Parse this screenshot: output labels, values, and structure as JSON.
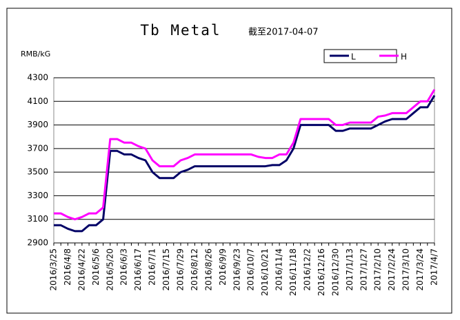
{
  "chart_data": {
    "type": "line",
    "title": "Tb Metal",
    "subtitle": "截至2017-04-07",
    "y_label": "RMB/kG",
    "categories": [
      "2016/3/25",
      null,
      "2016/4/8",
      null,
      "2016/4/22",
      null,
      "2016/5/6",
      null,
      "2016/5/20",
      null,
      "2016/6/3",
      null,
      "2016/6/17",
      null,
      "2016/7/1",
      null,
      "2016/7/15",
      null,
      "2016/7/29",
      null,
      "2016/8/12",
      null,
      "2016/8/26",
      null,
      "2016/9/9",
      null,
      "2016/9/23",
      null,
      "2016/10/7",
      null,
      "2016/10/21",
      null,
      "2016/11/4",
      null,
      "2016/11/18",
      null,
      "2016/12/2",
      null,
      "2016/12/16",
      null,
      "2016/12/30",
      null,
      "2017/1/13",
      null,
      "2017/1/27",
      null,
      "2017/2/10",
      null,
      "2017/2/24",
      null,
      "2017/3/10",
      null,
      "2017/3/24",
      null,
      "2017/4/7"
    ],
    "series": [
      {
        "name": "L",
        "color": "#000066",
        "values": [
          3050,
          3050,
          3020,
          3000,
          3000,
          3050,
          3050,
          3100,
          3680,
          3680,
          3650,
          3650,
          3620,
          3600,
          3500,
          3450,
          3450,
          3450,
          3500,
          3520,
          3550,
          3550,
          3550,
          3550,
          3550,
          3550,
          3550,
          3550,
          3550,
          3550,
          3550,
          3560,
          3560,
          3600,
          3700,
          3900,
          3900,
          3900,
          3900,
          3900,
          3850,
          3850,
          3870,
          3870,
          3870,
          3870,
          3900,
          3930,
          3950,
          3950,
          3950,
          4000,
          4050,
          4050,
          4150
        ]
      },
      {
        "name": "H",
        "color": "#ff00ff",
        "values": [
          3150,
          3150,
          3120,
          3100,
          3120,
          3150,
          3150,
          3200,
          3780,
          3780,
          3750,
          3750,
          3720,
          3700,
          3600,
          3550,
          3550,
          3550,
          3600,
          3620,
          3650,
          3650,
          3650,
          3650,
          3650,
          3650,
          3650,
          3650,
          3650,
          3630,
          3620,
          3620,
          3650,
          3650,
          3750,
          3950,
          3950,
          3950,
          3950,
          3950,
          3900,
          3900,
          3920,
          3920,
          3920,
          3920,
          3970,
          3980,
          4000,
          4000,
          4000,
          4050,
          4100,
          4100,
          4200
        ]
      }
    ],
    "ylim": [
      2900,
      4300
    ],
    "yticks": [
      2900,
      3100,
      3300,
      3500,
      3700,
      3900,
      4100,
      4300
    ],
    "grid": true
  }
}
